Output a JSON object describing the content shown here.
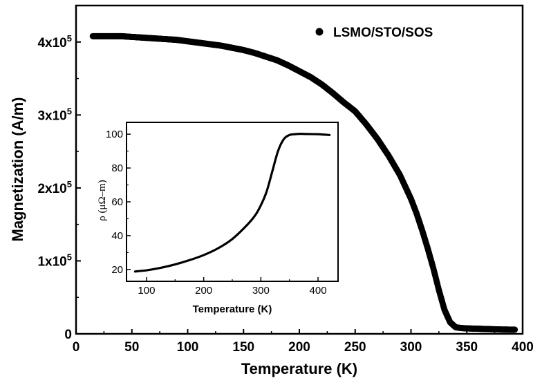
{
  "chart_data": [
    {
      "type": "scatter",
      "xlabel": "Temperature (K)",
      "ylabel": "Magnetization (A/m)",
      "xlim": [
        0,
        400
      ],
      "ylim": [
        0,
        450000
      ],
      "xticks": [
        "0",
        "50",
        "100",
        "150",
        "200",
        "250",
        "300",
        "350",
        "400"
      ],
      "xtick_values": [
        0,
        50,
        100,
        150,
        200,
        250,
        300,
        350,
        400
      ],
      "yticks": [
        {
          "value": 0,
          "mantissa": "0",
          "exp": ""
        },
        {
          "value": 100000,
          "mantissa": "1x10",
          "exp": "5"
        },
        {
          "value": 200000,
          "mantissa": "2x10",
          "exp": "5"
        },
        {
          "value": 300000,
          "mantissa": "3x10",
          "exp": "5"
        },
        {
          "value": 400000,
          "mantissa": "4x10",
          "exp": "5"
        }
      ],
      "legend": {
        "label": "LSMO/STO/SOS",
        "position": "top-right"
      },
      "marker_color": "#000000",
      "series": [
        {
          "name": "LSMO/STO/SOS",
          "x": [
            15,
            20,
            30,
            40,
            50,
            60,
            70,
            80,
            90,
            100,
            110,
            120,
            130,
            140,
            150,
            160,
            170,
            180,
            190,
            200,
            210,
            220,
            230,
            240,
            250,
            260,
            270,
            280,
            290,
            300,
            305,
            310,
            315,
            320,
            325,
            330,
            335,
            340,
            345,
            350,
            360,
            370,
            380,
            390,
            393
          ],
          "y": [
            408000,
            408000,
            408000,
            408000,
            407000,
            406000,
            405000,
            404000,
            403000,
            401000,
            399000,
            397000,
            395000,
            392000,
            389000,
            385000,
            380000,
            375000,
            368000,
            360000,
            352000,
            342000,
            330000,
            317000,
            305000,
            287000,
            267000,
            244000,
            218000,
            185000,
            165000,
            142000,
            117000,
            90000,
            60000,
            33000,
            16000,
            9000,
            8000,
            7500,
            7000,
            6500,
            6000,
            5800,
            5800
          ]
        }
      ]
    },
    {
      "type": "line",
      "xlabel": "Temperature (K)",
      "ylabel": "ρ (μΩ–m)",
      "xlim": [
        65,
        435
      ],
      "ylim": [
        13,
        107
      ],
      "xticks": [
        "100",
        "200",
        "300",
        "400"
      ],
      "xtick_values": [
        100,
        200,
        300,
        400
      ],
      "yticks": [
        "20",
        "40",
        "60",
        "80",
        "100"
      ],
      "ytick_values": [
        20,
        40,
        60,
        80,
        100
      ],
      "series": [
        {
          "x": [
            80,
            100,
            125,
            150,
            175,
            200,
            225,
            250,
            275,
            290,
            300,
            310,
            320,
            330,
            340,
            350,
            360,
            370,
            380,
            400,
            420
          ],
          "y": [
            18.8,
            19.5,
            21,
            23,
            25.5,
            28.5,
            32.5,
            38,
            46,
            52,
            58,
            66,
            78,
            90,
            97,
            99.5,
            100,
            100.2,
            100.1,
            100,
            99.5
          ]
        }
      ]
    }
  ]
}
